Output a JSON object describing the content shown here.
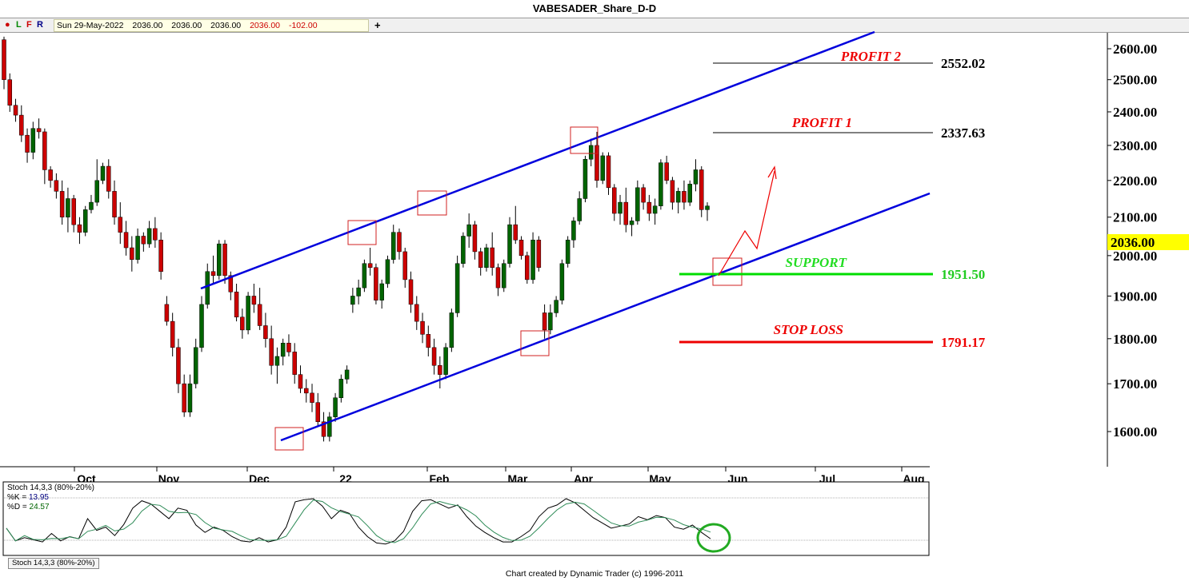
{
  "window": {
    "title": "VABESADER_Share_D-D"
  },
  "toolbar": {
    "dot": "●",
    "l": "L",
    "f": "F",
    "r": "R",
    "plus": "+"
  },
  "infobar": {
    "date": "Sun 29-May-2022",
    "open": "2036.00",
    "high": "2036.00",
    "low": "2036.00",
    "close": "2036.00",
    "change": "-102.00"
  },
  "current_price": "2036.00",
  "stoch": {
    "title": "Stoch 14,3,3 (80%-20%)",
    "k_label": "%K = ",
    "k_value": "13.95",
    "d_label": "%D = ",
    "d_value": "24.57",
    "tab": "Stoch 14,3,3 (80%-20%)"
  },
  "footer": "Chart created by Dynamic Trader  (c) 1996-2011",
  "colors": {
    "up": "#006400",
    "down": "#cc0000",
    "channel": "#0000dd",
    "support": "#00dd00",
    "stop": "#ee0000",
    "highlight": "#ffff00"
  },
  "chart_data": {
    "type": "candlestick",
    "title": "VABESADER_Share_D-D",
    "y_ticks": [
      "2600.00",
      "2500.00",
      "2400.00",
      "2300.00",
      "2200.00",
      "2100.00",
      "2000.00",
      "1900.00",
      "1800.00",
      "1700.00",
      "1600.00"
    ],
    "x_ticks": [
      "Oct",
      "Nov",
      "Dec",
      "22",
      "Feb",
      "Mar",
      "Apr",
      "May",
      "Jun",
      "Jul",
      "Aug"
    ],
    "levels": [
      {
        "label": "PROFIT 2",
        "value": "2552.02"
      },
      {
        "label": "PROFIT 1",
        "value": "2337.63"
      },
      {
        "label": "SUPPORT",
        "value": "1951.50"
      },
      {
        "label": "STOP LOSS",
        "value": "1791.17"
      }
    ],
    "channel": {
      "type": "ascending",
      "color": "blue"
    },
    "candles": [
      [
        2630,
        2640,
        2470,
        2500
      ],
      [
        2500,
        2520,
        2400,
        2420
      ],
      [
        2420,
        2440,
        2370,
        2390
      ],
      [
        2390,
        2420,
        2310,
        2330
      ],
      [
        2330,
        2350,
        2250,
        2280
      ],
      [
        2280,
        2370,
        2260,
        2350
      ],
      [
        2350,
        2380,
        2320,
        2340
      ],
      [
        2340,
        2350,
        2190,
        2230
      ],
      [
        2230,
        2240,
        2180,
        2200
      ],
      [
        2200,
        2220,
        2150,
        2170
      ],
      [
        2170,
        2200,
        2080,
        2100
      ],
      [
        2100,
        2180,
        2060,
        2150
      ],
      [
        2150,
        2160,
        2060,
        2080
      ],
      [
        2080,
        2100,
        2030,
        2060
      ],
      [
        2060,
        2130,
        2050,
        2120
      ],
      [
        2120,
        2160,
        2110,
        2140
      ],
      [
        2140,
        2260,
        2130,
        2200
      ],
      [
        2200,
        2250,
        2190,
        2240
      ],
      [
        2240,
        2260,
        2150,
        2170
      ],
      [
        2170,
        2200,
        2080,
        2100
      ],
      [
        2100,
        2140,
        2030,
        2060
      ],
      [
        2060,
        2090,
        2000,
        2020
      ],
      [
        2020,
        2050,
        1960,
        1990
      ],
      [
        1990,
        2070,
        1980,
        2050
      ],
      [
        2050,
        2060,
        2010,
        2030
      ],
      [
        2030,
        2090,
        2020,
        2070
      ],
      [
        2070,
        2100,
        2020,
        2040
      ],
      [
        2040,
        2060,
        1940,
        1960
      ],
      [
        1880,
        1900,
        1830,
        1840
      ],
      [
        1840,
        1860,
        1760,
        1780
      ],
      [
        1780,
        1800,
        1680,
        1700
      ],
      [
        1700,
        1720,
        1630,
        1640
      ],
      [
        1640,
        1720,
        1630,
        1700
      ],
      [
        1700,
        1800,
        1690,
        1780
      ],
      [
        1780,
        1900,
        1770,
        1880
      ],
      [
        1880,
        1980,
        1870,
        1960
      ],
      [
        1960,
        2000,
        1930,
        1950
      ],
      [
        1950,
        2040,
        1940,
        2030
      ],
      [
        2030,
        2040,
        1930,
        1950
      ],
      [
        1950,
        1960,
        1890,
        1910
      ],
      [
        1910,
        1930,
        1840,
        1850
      ],
      [
        1850,
        1870,
        1800,
        1820
      ],
      [
        1820,
        1910,
        1810,
        1900
      ],
      [
        1900,
        1930,
        1860,
        1880
      ],
      [
        1880,
        1920,
        1820,
        1830
      ],
      [
        1830,
        1860,
        1780,
        1800
      ],
      [
        1800,
        1830,
        1720,
        1740
      ],
      [
        1740,
        1780,
        1700,
        1760
      ],
      [
        1760,
        1800,
        1740,
        1790
      ],
      [
        1790,
        1810,
        1760,
        1770
      ],
      [
        1770,
        1790,
        1700,
        1720
      ],
      [
        1720,
        1740,
        1680,
        1690
      ],
      [
        1690,
        1710,
        1660,
        1680
      ],
      [
        1680,
        1700,
        1640,
        1660
      ],
      [
        1660,
        1680,
        1610,
        1620
      ],
      [
        1620,
        1640,
        1580,
        1590
      ],
      [
        1590,
        1640,
        1580,
        1630
      ],
      [
        1630,
        1680,
        1620,
        1670
      ],
      [
        1670,
        1720,
        1660,
        1710
      ],
      [
        1710,
        1740,
        1700,
        1730
      ],
      [
        1880,
        1920,
        1860,
        1900
      ],
      [
        1900,
        1940,
        1880,
        1920
      ],
      [
        1920,
        1990,
        1910,
        1980
      ],
      [
        1980,
        2020,
        1950,
        1970
      ],
      [
        1970,
        1980,
        1880,
        1890
      ],
      [
        1890,
        1940,
        1870,
        1930
      ],
      [
        1930,
        2000,
        1920,
        1990
      ],
      [
        1990,
        2080,
        1980,
        2060
      ],
      [
        2060,
        2070,
        1990,
        2010
      ],
      [
        2010,
        2020,
        1920,
        1940
      ],
      [
        1940,
        1960,
        1860,
        1880
      ],
      [
        1880,
        1900,
        1820,
        1840
      ],
      [
        1840,
        1860,
        1790,
        1810
      ],
      [
        1810,
        1830,
        1760,
        1780
      ],
      [
        1780,
        1800,
        1720,
        1740
      ],
      [
        1740,
        1760,
        1690,
        1720
      ],
      [
        1720,
        1790,
        1710,
        1780
      ],
      [
        1780,
        1870,
        1770,
        1860
      ],
      [
        1860,
        2000,
        1850,
        1980
      ],
      [
        1980,
        2060,
        1970,
        2050
      ],
      [
        2050,
        2110,
        2020,
        2080
      ],
      [
        2080,
        2090,
        1990,
        2010
      ],
      [
        2010,
        2020,
        1950,
        1970
      ],
      [
        1970,
        2030,
        1960,
        2020
      ],
      [
        2020,
        2060,
        1950,
        1970
      ],
      [
        1970,
        1980,
        1900,
        1920
      ],
      [
        1920,
        1990,
        1910,
        1980
      ],
      [
        1980,
        2100,
        1970,
        2080
      ],
      [
        2080,
        2130,
        2030,
        2040
      ],
      [
        2040,
        2050,
        1990,
        2000
      ],
      [
        2000,
        2010,
        1930,
        1940
      ],
      [
        1940,
        2060,
        1930,
        2040
      ],
      [
        2040,
        2050,
        1960,
        1970
      ],
      [
        1860,
        1880,
        1800,
        1820
      ],
      [
        1820,
        1880,
        1810,
        1860
      ],
      [
        1860,
        1900,
        1850,
        1890
      ],
      [
        1890,
        1990,
        1880,
        1980
      ],
      [
        1980,
        2050,
        1970,
        2040
      ],
      [
        2040,
        2100,
        2020,
        2090
      ],
      [
        2090,
        2170,
        2080,
        2150
      ],
      [
        2150,
        2270,
        2140,
        2260
      ],
      [
        2260,
        2320,
        2240,
        2300
      ],
      [
        2300,
        2340,
        2180,
        2200
      ],
      [
        2200,
        2280,
        2190,
        2270
      ],
      [
        2270,
        2280,
        2160,
        2180
      ],
      [
        2180,
        2190,
        2090,
        2110
      ],
      [
        2110,
        2160,
        2080,
        2140
      ],
      [
        2140,
        2180,
        2060,
        2080
      ],
      [
        2080,
        2100,
        2050,
        2090
      ],
      [
        2090,
        2200,
        2080,
        2180
      ],
      [
        2180,
        2190,
        2120,
        2140
      ],
      [
        2140,
        2160,
        2090,
        2110
      ],
      [
        2110,
        2150,
        2080,
        2130
      ],
      [
        2130,
        2260,
        2120,
        2250
      ],
      [
        2250,
        2270,
        2190,
        2200
      ],
      [
        2200,
        2210,
        2120,
        2140
      ],
      [
        2140,
        2180,
        2110,
        2170
      ],
      [
        2170,
        2200,
        2120,
        2140
      ],
      [
        2140,
        2200,
        2130,
        2190
      ],
      [
        2190,
        2260,
        2170,
        2230
      ],
      [
        2230,
        2240,
        2100,
        2120
      ],
      [
        2120,
        2140,
        2090,
        2130
      ]
    ]
  }
}
